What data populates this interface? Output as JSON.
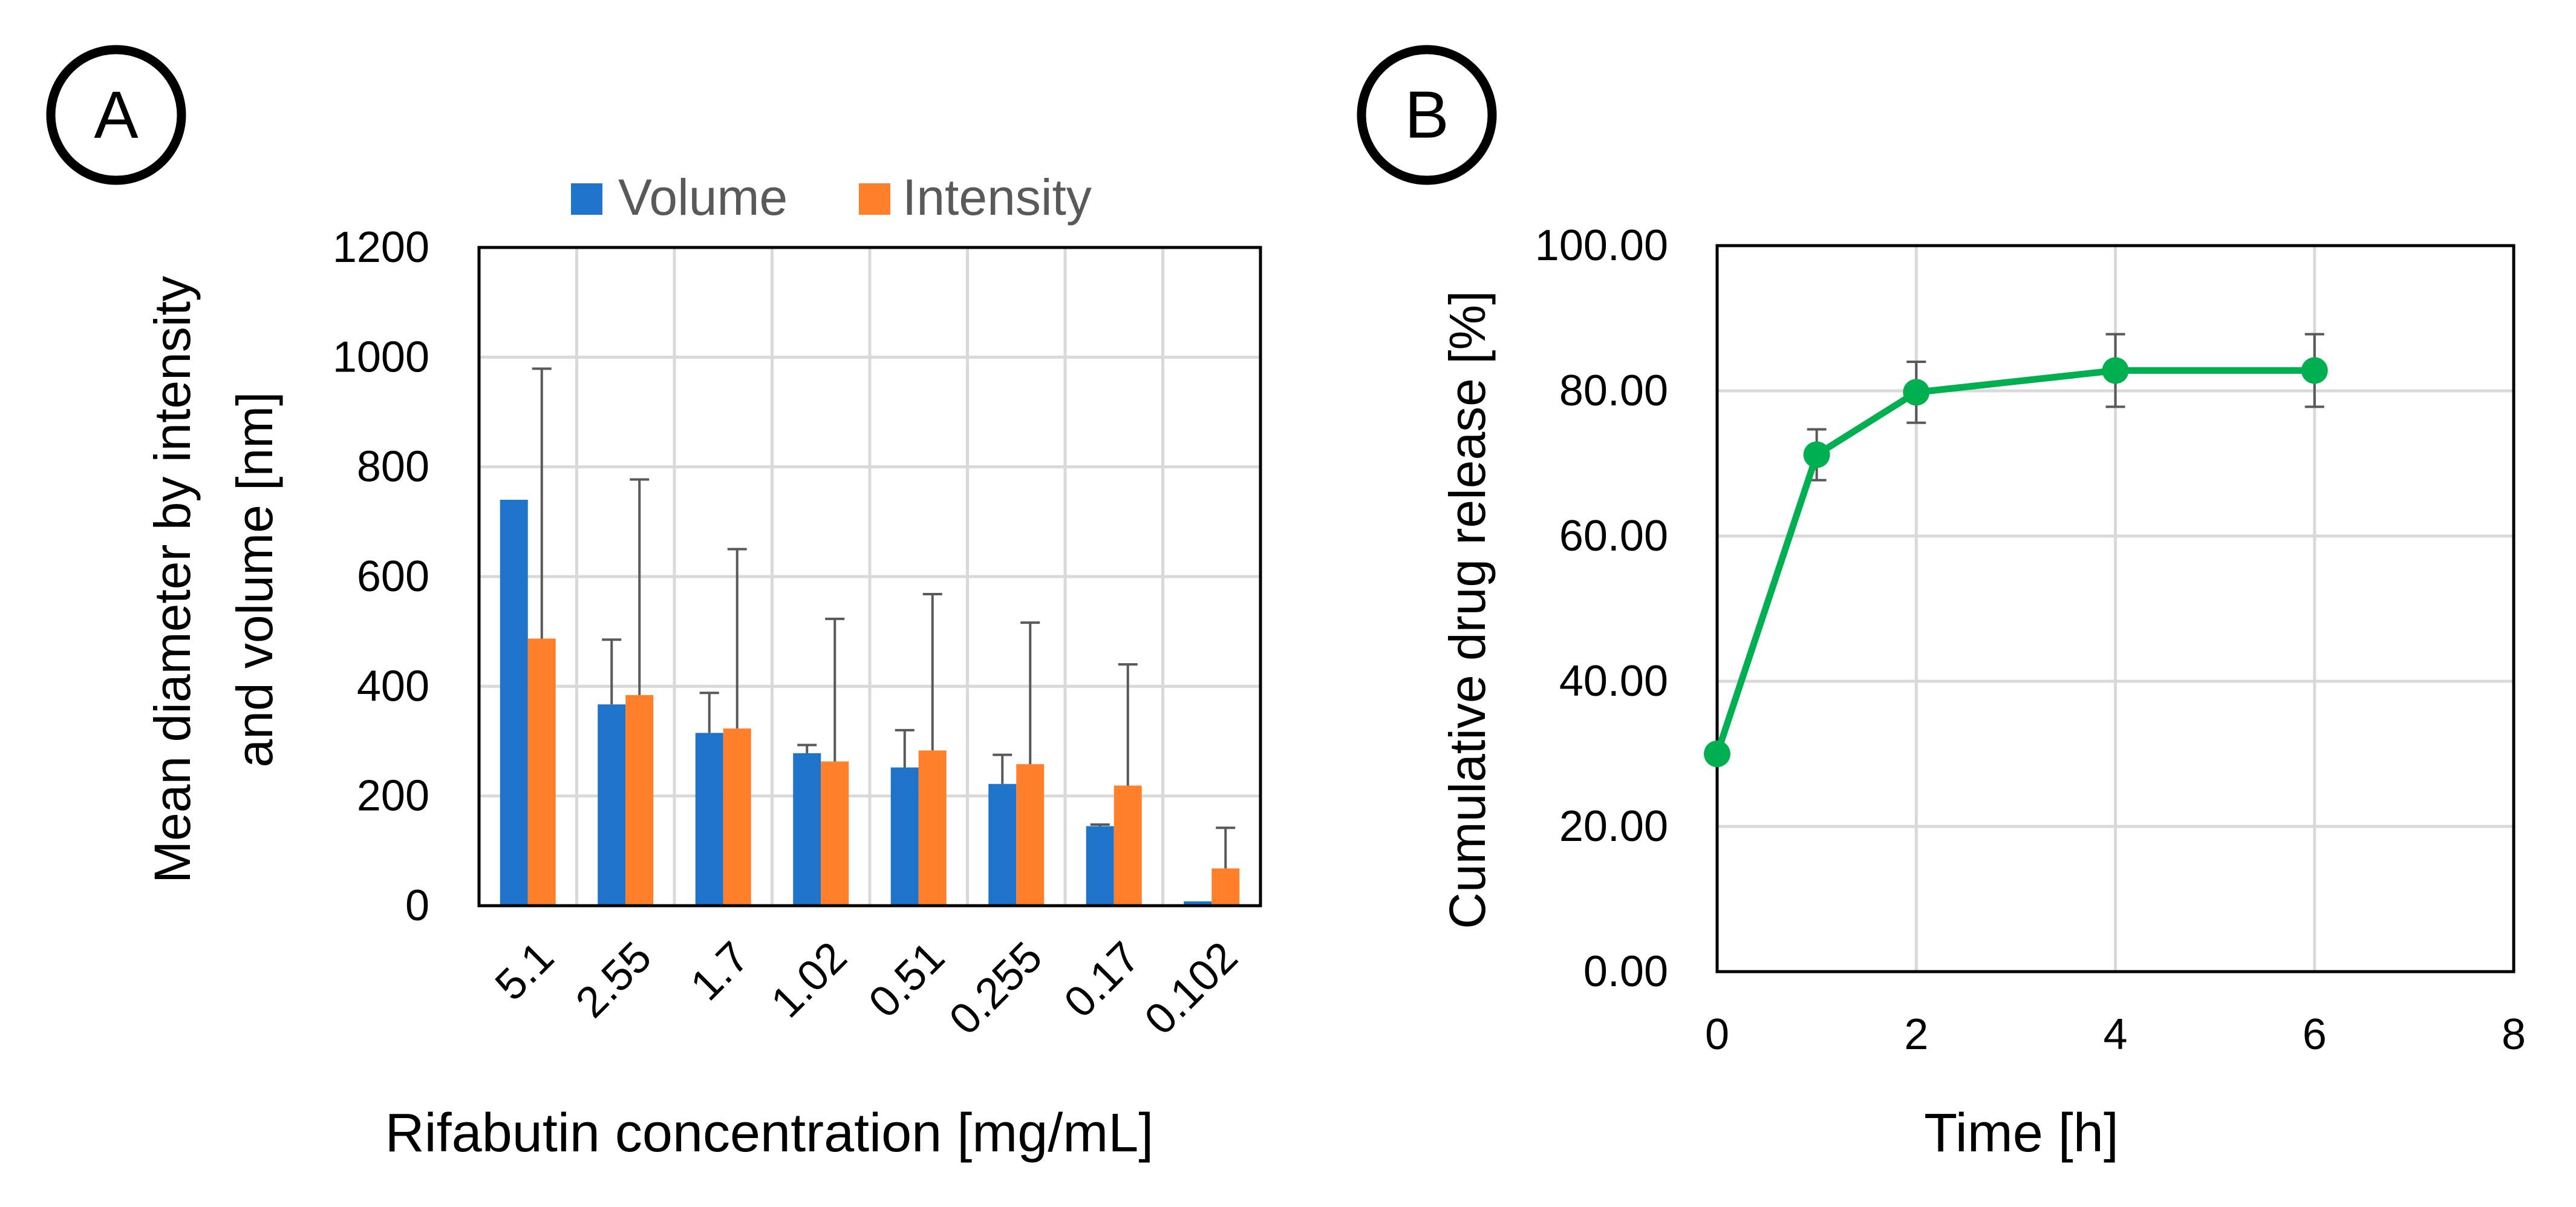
{
  "panels": {
    "a": {
      "label": "A"
    },
    "b": {
      "label": "B"
    }
  },
  "chart_data": [
    {
      "type": "bar",
      "title": "",
      "categories": [
        "5.1",
        "2.55",
        "1.7",
        "1.02",
        "0.51",
        "0.255",
        "0.17",
        "0.102"
      ],
      "series": [
        {
          "name": "Volume",
          "color": "#1f73c9",
          "values": [
            740,
            367,
            315,
            278,
            252,
            222,
            145,
            8
          ],
          "errors": [
            0,
            118,
            73,
            15,
            68,
            53,
            3,
            0
          ]
        },
        {
          "name": "Intensity",
          "color": "#ff7f2a",
          "values": [
            487,
            384,
            323,
            263,
            283,
            258,
            219,
            68
          ],
          "errors": [
            492,
            393,
            327,
            260,
            285,
            258,
            221,
            74
          ]
        }
      ],
      "xlabel": "Rifabutin concentration [mg/mL]",
      "ylabel_line1": "Mean diameter by intensity",
      "ylabel_line2": "and volume [nm]",
      "ylim": [
        0,
        1200
      ],
      "yticks": [
        "0",
        "200",
        "400",
        "600",
        "800",
        "1000",
        "1200"
      ],
      "ytick_values": [
        0,
        200,
        400,
        600,
        800,
        1000,
        1200
      ],
      "legend_position": "top",
      "grid": true
    },
    {
      "type": "line",
      "title": "",
      "series": [
        {
          "name": "Cumulative drug release",
          "color": "#00b050",
          "x": [
            0,
            1,
            2,
            4,
            6
          ],
          "y": [
            30.0,
            71.2,
            79.8,
            82.8,
            82.8
          ],
          "errors": [
            0,
            3.5,
            4.2,
            5.0,
            5.0
          ]
        }
      ],
      "xlabel": "Time [h]",
      "ylabel": "Cumulative drug release [%]",
      "xlim": [
        0,
        8
      ],
      "ylim": [
        0,
        100
      ],
      "xticks": [
        "0",
        "2",
        "4",
        "6",
        "8"
      ],
      "xtick_values": [
        0,
        2,
        4,
        6,
        8
      ],
      "yticks": [
        "0.00",
        "20.00",
        "40.00",
        "60.00",
        "80.00",
        "100.00"
      ],
      "ytick_values": [
        0,
        20,
        40,
        60,
        80,
        100
      ],
      "grid": true
    }
  ]
}
